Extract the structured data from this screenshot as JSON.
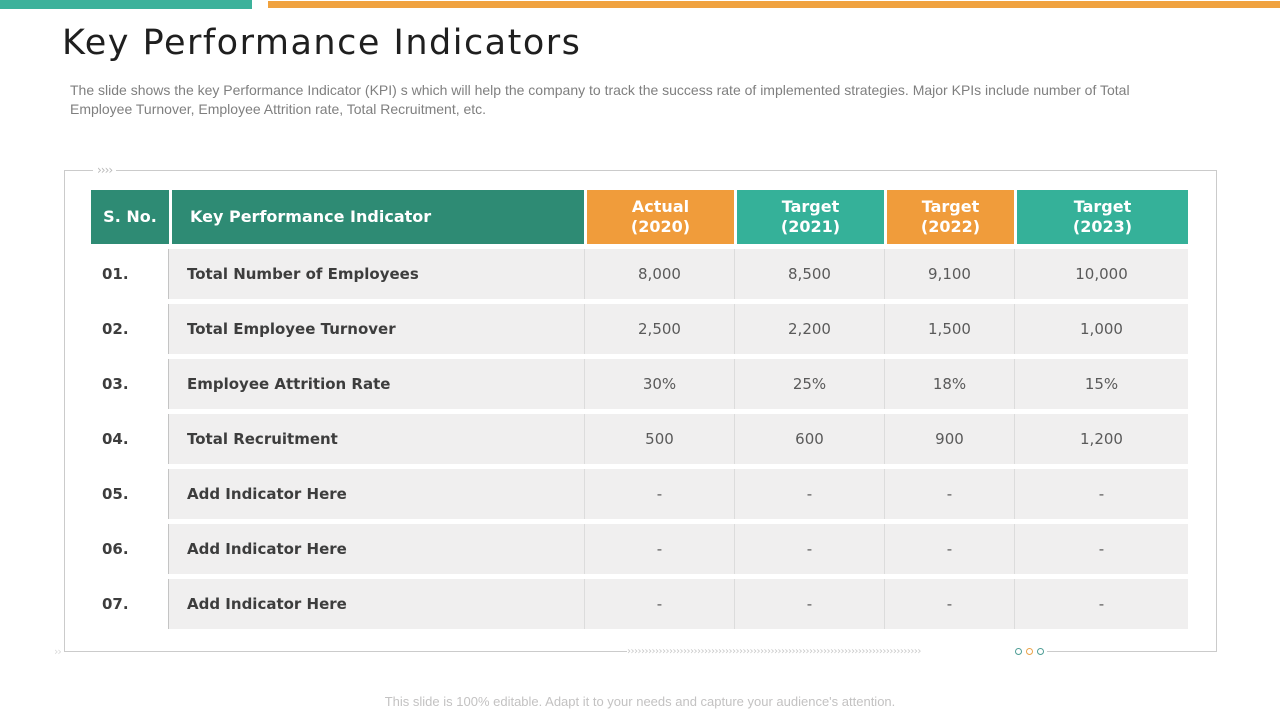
{
  "colors": {
    "top_bar_teal": "#3cb29b",
    "top_bar_orange": "#f0a23f",
    "header_dark_teal": "#2e8b74",
    "header_light_teal": "#35b199",
    "header_orange": "#f09c3b",
    "row_background": "#f0efef"
  },
  "header": {
    "title": "Key Performance Indicators",
    "description_line1": "The slide shows the key Performance Indicator (KPI) s which will help the company to track the success rate of implemented strategies. Major  KPIs include number of Total",
    "description_line2": "Employee Turnover,  Employee Attrition  rate,  Total Recruitment,  etc."
  },
  "table": {
    "columns": [
      {
        "line1": "S. No.",
        "line2": ""
      },
      {
        "line1": "Key Performance Indicator",
        "line2": ""
      },
      {
        "line1": "Actual",
        "line2": "(2020)"
      },
      {
        "line1": "Target",
        "line2": "(2021)"
      },
      {
        "line1": "Target",
        "line2": "(2022)"
      },
      {
        "line1": "Target",
        "line2": "(2023)"
      }
    ],
    "rows": [
      {
        "no": "01.",
        "indicator": "Total Number of Employees",
        "values": [
          "8,000",
          "8,500",
          "9,100",
          "10,000"
        ]
      },
      {
        "no": "02.",
        "indicator": "Total Employee Turnover",
        "values": [
          "2,500",
          "2,200",
          "1,500",
          "1,000"
        ]
      },
      {
        "no": "03.",
        "indicator": "Employee Attrition  Rate",
        "values": [
          "30%",
          "25%",
          "18%",
          "15%"
        ]
      },
      {
        "no": "04.",
        "indicator": "Total Recruitment",
        "values": [
          "500",
          "600",
          "900",
          "1,200"
        ]
      },
      {
        "no": "05.",
        "indicator": "Add Indicator Here",
        "values": [
          "-",
          "-",
          "-",
          "-"
        ]
      },
      {
        "no": "06.",
        "indicator": "Add Indicator Here",
        "values": [
          "-",
          "-",
          "-",
          "-"
        ]
      },
      {
        "no": "07.",
        "indicator": "Add Indicator Here",
        "values": [
          "-",
          "-",
          "-",
          "-"
        ]
      }
    ]
  },
  "footer": {
    "note": "This slide is 100% editable. Adapt it to your needs and capture your audience's attention."
  }
}
